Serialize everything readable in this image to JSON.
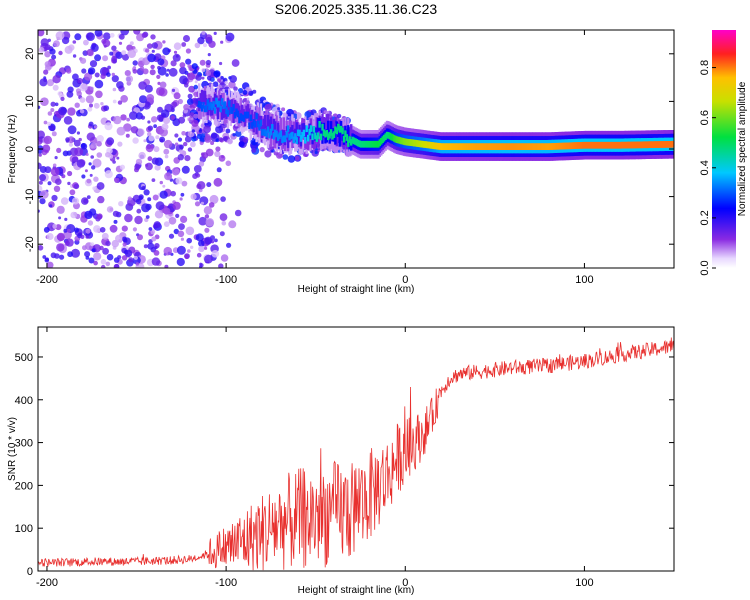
{
  "title": "S206.2025.335.11.36.C23",
  "colors": {
    "snr_line": "#e8302e",
    "axis": "#000000"
  },
  "chart_data": [
    {
      "type": "heatmap",
      "name": "spectrogram",
      "xlabel": "Height of straight line (km)",
      "ylabel": "Frequency (Hz)",
      "xlim": [
        -205,
        150
      ],
      "ylim": [
        -25,
        25
      ],
      "xticks": [
        "-200",
        "-100",
        "0",
        "100"
      ],
      "xtick_values": [
        -200,
        -100,
        0,
        100
      ],
      "yticks": [
        "20",
        "10",
        "0",
        "-10",
        "-20"
      ],
      "ytick_values": [
        20,
        10,
        0,
        -10,
        -20
      ],
      "colorbar": {
        "label": "Normalized spectral amplitude",
        "range": [
          0.0,
          0.95
        ],
        "ticks": [
          "0.0",
          "0.2",
          "0.4",
          "0.6",
          "0.8"
        ],
        "tick_values": [
          0.0,
          0.2,
          0.4,
          0.6,
          0.8
        ],
        "colormap": "rainbow (white-violet-blue-cyan-green-yellow-red-magenta)"
      },
      "ridge": {
        "description": "Dominant frequency band vs height",
        "x": [
          -115,
          -105,
          -95,
          -85,
          -75,
          -65,
          -55,
          -45,
          -35,
          -25,
          -15,
          -10,
          -5,
          0,
          10,
          20,
          40,
          60,
          80,
          100,
          120,
          150
        ],
        "y": [
          10,
          9,
          8,
          6,
          4,
          3,
          3,
          4,
          3,
          1,
          1,
          3,
          2,
          1.5,
          1,
          0.5,
          0.5,
          0.5,
          0.5,
          0.8,
          0.8,
          1
        ],
        "amplitude": [
          0.3,
          0.35,
          0.3,
          0.3,
          0.35,
          0.35,
          0.4,
          0.5,
          0.5,
          0.5,
          0.55,
          0.5,
          0.6,
          0.65,
          0.7,
          0.8,
          0.82,
          0.83,
          0.82,
          0.85,
          0.85,
          0.85
        ]
      },
      "noise_region": {
        "x_range": [
          -205,
          -115
        ],
        "amplitude": 0.15
      }
    },
    {
      "type": "line",
      "name": "snr",
      "xlabel": "Height of straight line (km)",
      "ylabel": "SNR (10 * v/v)",
      "xlim": [
        -205,
        150
      ],
      "ylim": [
        0,
        570
      ],
      "xticks": [
        "-200",
        "-100",
        "0",
        "100"
      ],
      "xtick_values": [
        -200,
        -100,
        0,
        100
      ],
      "yticks": [
        "0",
        "100",
        "200",
        "300",
        "400",
        "500"
      ],
      "ytick_values": [
        0,
        100,
        200,
        300,
        400,
        500
      ],
      "series": [
        {
          "name": "SNR",
          "x": [
            -205,
            -190,
            -170,
            -150,
            -130,
            -120,
            -110,
            -100,
            -90,
            -80,
            -70,
            -60,
            -50,
            -40,
            -30,
            -25,
            -20,
            -15,
            -10,
            -5,
            0,
            5,
            10,
            15,
            20,
            25,
            30,
            40,
            50,
            60,
            80,
            100,
            120,
            150
          ],
          "y": [
            20,
            20,
            22,
            22,
            25,
            28,
            40,
            55,
            70,
            90,
            110,
            120,
            130,
            135,
            140,
            160,
            175,
            200,
            220,
            260,
            280,
            300,
            320,
            360,
            420,
            450,
            460,
            465,
            470,
            475,
            480,
            490,
            505,
            525
          ]
        }
      ]
    }
  ]
}
